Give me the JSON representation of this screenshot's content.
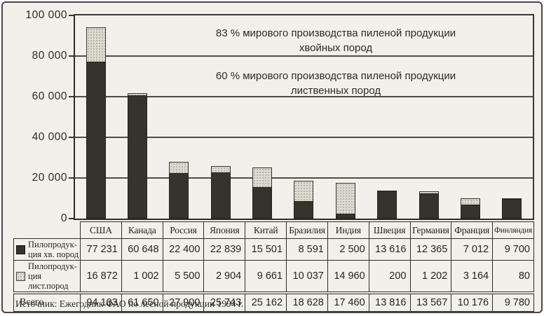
{
  "chart_data": {
    "type": "bar",
    "stacked": true,
    "title": "",
    "xlabel": "",
    "ylabel": "",
    "categories": [
      "США",
      "Канада",
      "Россия",
      "Япония",
      "Китай",
      "Бразилия",
      "Индия",
      "Швеция",
      "Германия",
      "Франция",
      "Финляндия"
    ],
    "series": [
      {
        "name": "Пилопродукция хв. пород",
        "color": "#36332f",
        "values": [
          77231,
          60648,
          22400,
          22839,
          15501,
          8591,
          2500,
          13616,
          12365,
          7012,
          9700
        ]
      },
      {
        "name": "Пилопродукция лист.пород",
        "color": "#dedbd3",
        "values": [
          16872,
          1002,
          5500,
          2904,
          9661,
          10037,
          14960,
          200,
          1202,
          3164,
          80
        ]
      }
    ],
    "totals_row": {
      "label": "Всего",
      "values": [
        94103,
        61650,
        27900,
        25743,
        25162,
        18628,
        17460,
        13816,
        13567,
        10176,
        9780
      ]
    },
    "ylim": [
      0,
      100000
    ],
    "ytick_interval": 20000,
    "ytick_labels": [
      "100 000",
      "80 000",
      "60 000",
      "40 000",
      "20 000",
      "0"
    ],
    "grid": "horizontal",
    "legend_position": "table-left-column",
    "annotations": [
      {
        "line1": "83 % мирового производства пиленой продукции",
        "line2": "хвойных пород"
      },
      {
        "line1": "60 % мирового производства пиленой продукции",
        "line2": "лиственных пород"
      }
    ],
    "source_note": "Источник: Ежегодник ФАО по лесной продукции 1994 г."
  },
  "table": {
    "columns": [
      "США",
      "Канада",
      "Россия",
      "Япония",
      "Китай",
      "Бразилия",
      "Индия",
      "Швеция",
      "Германия",
      "Франция",
      "Финляндия"
    ],
    "rows": [
      {
        "label_line1": "Пилопродук-",
        "label_line2": "ция хв. пород",
        "swatch": "dark",
        "values": [
          "77 231",
          "60 648",
          "22 400",
          "22 839",
          "15 501",
          "8 591",
          "2 500",
          "13 616",
          "12 365",
          "7 012",
          "9 700"
        ]
      },
      {
        "label_line1": "Пилопродук-",
        "label_line2": "ция лист.пород",
        "swatch": "light",
        "values": [
          "16 872",
          "1 002",
          "5 500",
          "2 904",
          "9 661",
          "10 037",
          "14 960",
          "200",
          "1 202",
          "3 164",
          "80"
        ]
      },
      {
        "label": "Всего",
        "values": [
          "94 103",
          "61 650",
          "27 900",
          "25 743",
          "25 162",
          "18 628",
          "17 460",
          "13 816",
          "13 567",
          "10 176",
          "9 780"
        ]
      }
    ]
  }
}
